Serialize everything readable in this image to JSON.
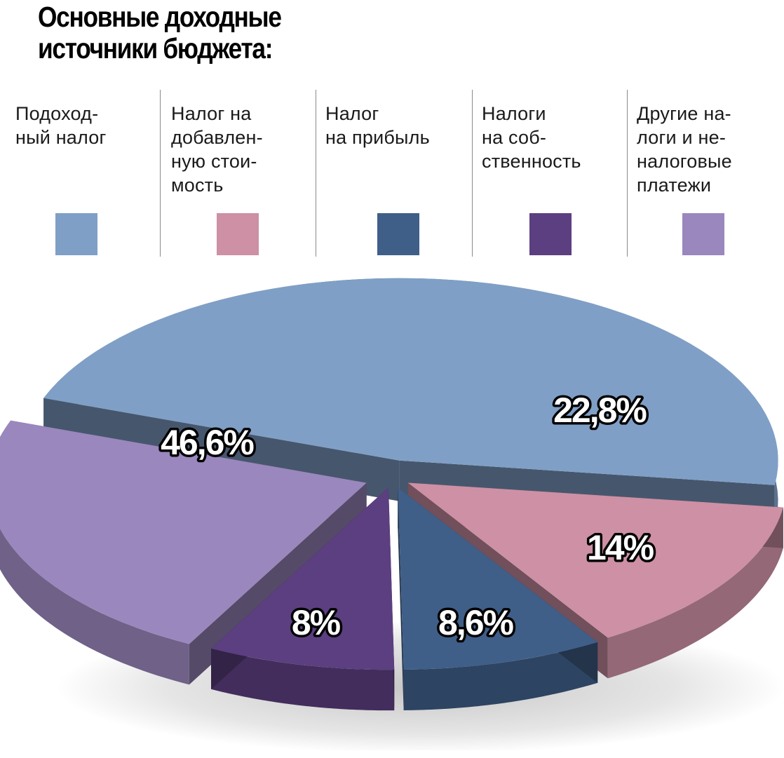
{
  "title": "Основные доходные\nисточники бюджета:",
  "legend": [
    {
      "label": "Подоход-\nный налог",
      "color": "#7f9fc6"
    },
    {
      "label": "Налог на\nдобавлен-\nную стои-\nмость",
      "color": "#cd90a5"
    },
    {
      "label": "Налог\nна прибыль",
      "color": "#3f5f88"
    },
    {
      "label": "Налоги\nна соб-\nственность",
      "color": "#5c3f80"
    },
    {
      "label": "Другие на-\nлоги и не-\nналоговые\nплатежи",
      "color": "#9a87bd"
    }
  ],
  "chart_data": {
    "type": "pie",
    "title": "Основные доходные источники бюджета:",
    "series": [
      {
        "categories": [
          "Подоходный налог",
          "Налог на добавленную стоимость",
          "Налог на прибыль",
          "Налоги на собственность",
          "Другие налоги и неналоговые платежи"
        ],
        "values": [
          46.6,
          14,
          8.6,
          8,
          22.8
        ],
        "labels": [
          "46,6%",
          "14%",
          "8,6%",
          "8%",
          "22,8%"
        ]
      }
    ],
    "legend": "top"
  }
}
